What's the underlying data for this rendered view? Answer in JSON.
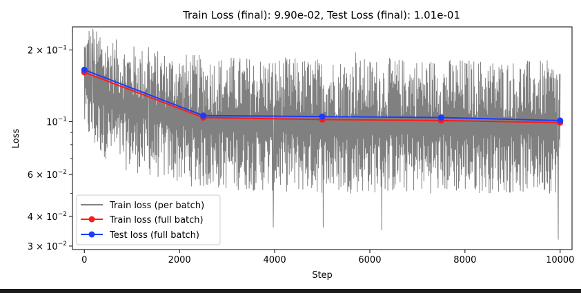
{
  "chart_data": {
    "type": "line",
    "title": "Train Loss (final): 9.90e-02, Test Loss (final): 1.01e-01",
    "xlabel": "Step",
    "ylabel": "Loss",
    "xlim": [
      -250,
      10250
    ],
    "ylim": [
      0.029,
      0.25
    ],
    "yscale": "log",
    "x_ticks": [
      0,
      2000,
      4000,
      6000,
      8000,
      10000
    ],
    "x_tick_labels": [
      "0",
      "2000",
      "4000",
      "6000",
      "8000",
      "10000"
    ],
    "y_ticks": [
      {
        "value": 0.2,
        "mant": "2",
        "exp": "−1"
      },
      {
        "value": 0.1,
        "mant": "",
        "exp": "−1"
      },
      {
        "value": 0.06,
        "mant": "6",
        "exp": "−2"
      },
      {
        "value": 0.04,
        "mant": "4",
        "exp": "−2"
      },
      {
        "value": 0.03,
        "mant": "3",
        "exp": "−2"
      }
    ],
    "y_minor_ticks": [
      0.09,
      0.08,
      0.07,
      0.05
    ],
    "grid": false,
    "legend_position": "lower-left",
    "series": [
      {
        "name": "Train loss (per batch)",
        "color": "#808080",
        "style": "noisy-band",
        "range": [
          0,
          10000
        ],
        "band_points": [
          {
            "x": 0,
            "lo": 0.09,
            "hi": 0.24
          },
          {
            "x": 200,
            "lo": 0.075,
            "hi": 0.245
          },
          {
            "x": 800,
            "lo": 0.063,
            "hi": 0.215
          },
          {
            "x": 1500,
            "lo": 0.058,
            "hi": 0.2
          },
          {
            "x": 2500,
            "lo": 0.052,
            "hi": 0.19
          },
          {
            "x": 5000,
            "lo": 0.05,
            "hi": 0.185
          },
          {
            "x": 7500,
            "lo": 0.05,
            "hi": 0.185
          },
          {
            "x": 10000,
            "lo": 0.05,
            "hi": 0.18
          }
        ],
        "min_dips": [
          {
            "x": 3970,
            "y": 0.036
          },
          {
            "x": 5020,
            "y": 0.036
          },
          {
            "x": 6250,
            "y": 0.035
          },
          {
            "x": 9960,
            "y": 0.032
          }
        ],
        "max_spikes": [
          {
            "x": 100,
            "y": 0.24
          },
          {
            "x": 180,
            "y": 0.245
          },
          {
            "x": 330,
            "y": 0.225
          },
          {
            "x": 1350,
            "y": 0.205
          },
          {
            "x": 5700,
            "y": 0.195
          }
        ]
      },
      {
        "name": "Train loss (full batch)",
        "color": "#ff1a1a",
        "marker": "circle",
        "x": [
          0,
          2500,
          5000,
          7500,
          10000
        ],
        "y": [
          0.161,
          0.104,
          0.102,
          0.101,
          0.099
        ]
      },
      {
        "name": "Test loss (full batch)",
        "color": "#1a3cff",
        "marker": "circle",
        "x": [
          0,
          2500,
          5000,
          7500,
          10000
        ],
        "y": [
          0.165,
          0.106,
          0.105,
          0.104,
          0.101
        ]
      }
    ]
  }
}
